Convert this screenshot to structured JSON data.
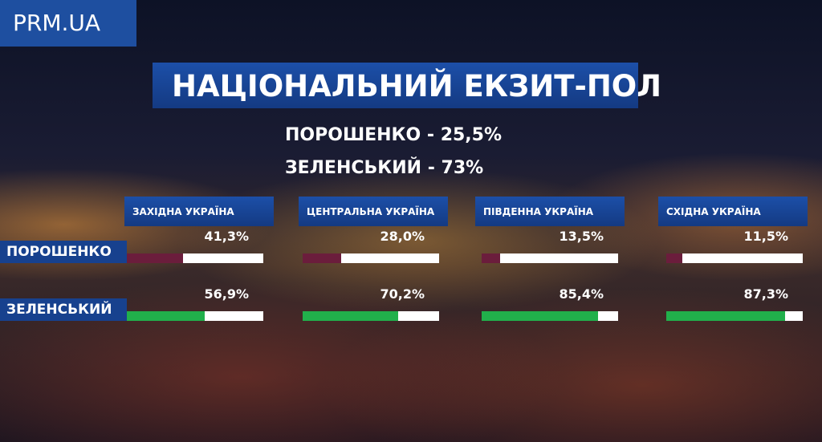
{
  "logo": "PRM.UA",
  "title": "НАЦІОНАЛЬНИЙ ЕКЗИТ-ПОЛ",
  "summary": [
    "ПОРОШЕНКО - 25,5%",
    "ЗЕЛЕНСЬКИЙ - 73%"
  ],
  "regions": [
    "ЗАХІДНА УКРАЇНА",
    "ЦЕНТРАЛЬНА УКРАЇНА",
    "ПІВДЕННА УКРАЇНА",
    "СХІДНА УКРАЇНА"
  ],
  "xlim": [
    0,
    100
  ],
  "rows": [
    {
      "name": "ПОРОШЕНКО",
      "color": "#6b1d3c",
      "values": [
        41.3,
        28.0,
        13.5,
        11.5
      ],
      "value_labels": [
        "41,3%",
        "28,0%",
        "13,5%",
        "11,5%"
      ]
    },
    {
      "name": "ЗЕЛЕНСЬКИЙ",
      "color": "#21b04b",
      "values": [
        56.9,
        70.2,
        85.4,
        87.3
      ],
      "value_labels": [
        "56,9%",
        "70,2%",
        "85,4%",
        "87,3%"
      ]
    }
  ]
}
